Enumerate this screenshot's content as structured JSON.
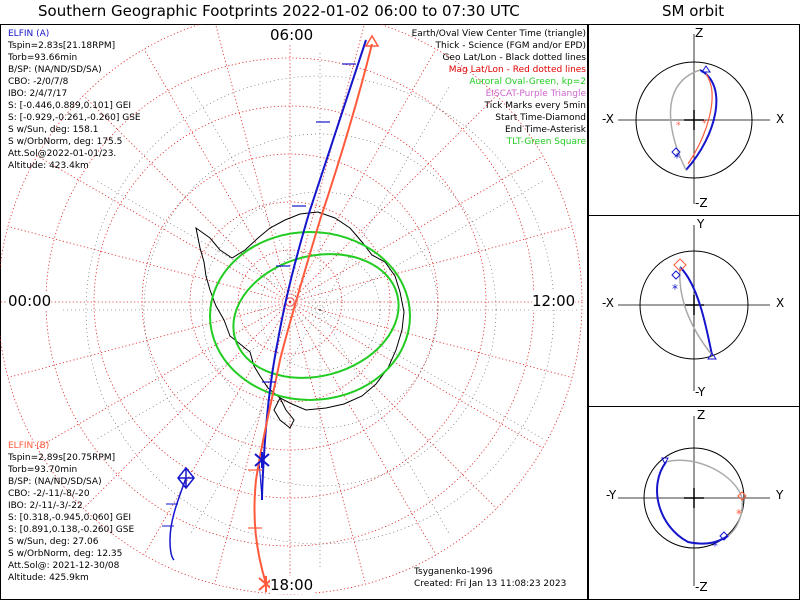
{
  "title": "Southern Geographic Footprints 2022-01-02 06:00 to 07:30 UTC",
  "orbit_title": "SM orbit",
  "clock": {
    "top": "06:00",
    "bottom": "18:00",
    "left": "00:00",
    "right": "12:00"
  },
  "elfin_a": {
    "name": "ELFIN (A)",
    "lines": [
      "Tspin=2.83s[21.18RPM]",
      "Torb=93.66min",
      "B/SP: (NA/ND/SD/SA)",
      "CBO: -2/0/7/8",
      "IBO: 2/4/7/17",
      "S: [-0.446,0.889,0.101] GEI",
      "S: [-0.929,-0.261,-0.260] GSE",
      "S w/Sun, deg: 158.1",
      "S w/OrbNorm, deg: 175.5",
      "Att.Sol@2022-01-01/23.",
      "Altitude: 423.4km"
    ]
  },
  "elfin_b": {
    "name": "ELFIN (B)",
    "lines": [
      "Tspin=2.89s[20.75RPM]",
      "Torb=93.70min",
      "B/SP: (NA/ND/SD/SA)",
      "CBO: -2/-11/-8/-20",
      "IBO: 2/-11/-3/-22",
      "S: [0.318,-0.945,0.060] GEI",
      "S: [0.891,0.138,-0.260] GSE",
      "S w/Sun, deg: 27.06",
      "S w/OrbNorm, deg: 12.35",
      "Att.Sol@: 2021-12-30/08",
      "Altitude: 425.9km"
    ]
  },
  "legend": [
    {
      "text": "Earth/Oval View Center Time (triangle)",
      "color": "#000000"
    },
    {
      "text": "Thick - Science (FGM and/or EPD)",
      "color": "#000000"
    },
    {
      "text": "Geo Lat/Lon - Black dotted lines",
      "color": "#000000"
    },
    {
      "text": "Mag Lat/Lon - Red dotted lines",
      "color": "#e00000"
    },
    {
      "text": "Auroral Oval-Green, kp=2",
      "color": "#22cc22"
    },
    {
      "text": "EISCAT-Purple Triangle",
      "color": "#cc66cc"
    },
    {
      "text": "Tick Marks every 5min",
      "color": "#000000"
    },
    {
      "text": "Start Time-Diamond",
      "color": "#000000"
    },
    {
      "text": "End Time-Asterisk",
      "color": "#000000"
    },
    {
      "text": "TLT-Green Square",
      "color": "#22cc22"
    }
  ],
  "credit": {
    "model": "Tsyganenko-1996",
    "created": "Created: Fri Jan 13 11:08:23 2023"
  },
  "orbit_panels": [
    {
      "top": "Z",
      "bottom": "-Z",
      "left": "-X",
      "right": "X"
    },
    {
      "top": "Y",
      "bottom": "-Y",
      "left": "-X",
      "right": "X"
    },
    {
      "top": "Z",
      "bottom": "-Z",
      "left": "-Y",
      "right": "Y"
    }
  ],
  "colors": {
    "elfin_a": "#1515cc",
    "elfin_b": "#ff5a3c",
    "oval": "#22cc22",
    "mag_grid": "#dd2020",
    "geo_grid": "#000000",
    "earth": "#aaaaaa"
  }
}
